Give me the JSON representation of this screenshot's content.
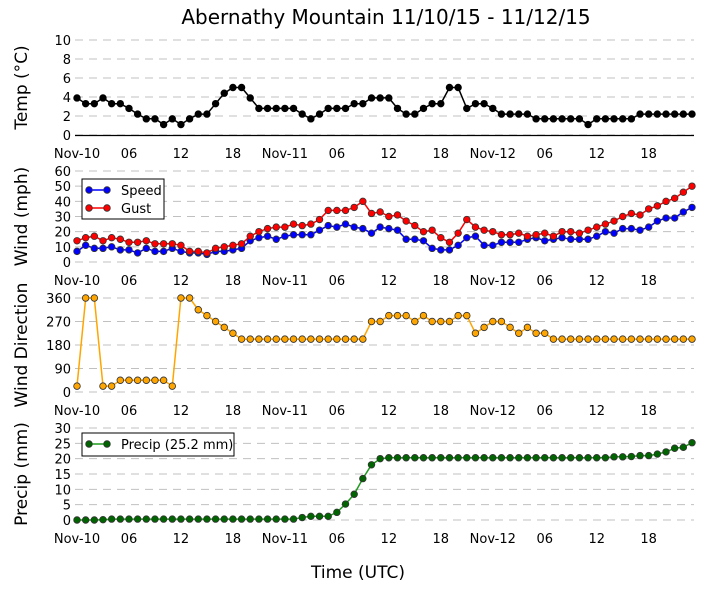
{
  "title": "Abernathy Mountain 11/10/15 - 11/12/15",
  "xlabel": "Time (UTC)",
  "x_tick_labels": [
    "Nov-10",
    "06",
    "12",
    "18",
    "Nov-11",
    "06",
    "12",
    "18",
    "Nov-12",
    "06",
    "12",
    "18"
  ],
  "x_tick_hours": [
    0,
    6,
    12,
    18,
    24,
    30,
    36,
    42,
    48,
    54,
    60,
    66
  ],
  "colors": {
    "temp": "#000000",
    "speed": "#0000ff",
    "gust": "#ff0000",
    "direction": "#ffa500",
    "precip_line": "#1f9a1f",
    "precip_marker": "#006400",
    "grid": "#c0c0c0"
  },
  "chart_data": [
    {
      "type": "line",
      "ylabel": "Temp (°C)",
      "ylim": [
        0,
        10
      ],
      "yticks": [
        "0",
        "2",
        "4",
        "6",
        "8",
        "10"
      ],
      "grid": true,
      "x_unit": "hours since Nov-10 00 UTC, hourly 0-71",
      "series": [
        {
          "name": "Temp",
          "color": "#000000",
          "values": [
            3.9,
            3.3,
            3.3,
            3.9,
            3.3,
            3.3,
            2.8,
            2.2,
            1.7,
            1.7,
            1.1,
            1.7,
            1.1,
            1.7,
            2.2,
            2.2,
            3.3,
            4.4,
            5.0,
            5.0,
            3.9,
            2.8,
            2.8,
            2.8,
            2.8,
            2.8,
            2.2,
            1.7,
            2.2,
            2.8,
            2.8,
            2.8,
            3.3,
            3.3,
            3.9,
            3.9,
            3.9,
            2.8,
            2.2,
            2.2,
            2.8,
            3.3,
            3.3,
            5.0,
            5.0,
            2.8,
            3.3,
            3.3,
            2.8,
            2.2,
            2.2,
            2.2,
            2.2,
            1.7,
            1.7,
            1.7,
            1.7,
            1.7,
            1.7,
            1.1,
            1.7,
            1.7,
            1.7,
            1.7,
            1.7,
            2.2,
            2.2,
            2.2,
            2.2,
            2.2,
            2.2,
            2.2
          ]
        }
      ]
    },
    {
      "type": "line",
      "ylabel": "Wind (mph)",
      "ylim": [
        0,
        60
      ],
      "yticks": [
        "0",
        "10",
        "20",
        "30",
        "40",
        "50",
        "60"
      ],
      "grid": true,
      "legend": "top-left",
      "series": [
        {
          "name": "Speed",
          "color": "#0000ff",
          "values": [
            7,
            11,
            9,
            9,
            10,
            8,
            8,
            6,
            9,
            7,
            7,
            9,
            7,
            6,
            6,
            5,
            7,
            7,
            8,
            9,
            14,
            16,
            17,
            15,
            17,
            18,
            18,
            18,
            21,
            24,
            23,
            25,
            23,
            22,
            19,
            23,
            22,
            21,
            15,
            15,
            14,
            9,
            8,
            8,
            11,
            16,
            17,
            11,
            11,
            13,
            13,
            13,
            15,
            16,
            14,
            15,
            16,
            15,
            15,
            15,
            17,
            20,
            19,
            22,
            22,
            21,
            23,
            27,
            29,
            29,
            33,
            36
          ]
        },
        {
          "name": "Gust",
          "color": "#ff0000",
          "values": [
            14,
            16,
            17,
            14,
            16,
            15,
            13,
            13,
            14,
            12,
            12,
            12,
            11,
            7,
            7,
            6,
            9,
            10,
            11,
            12,
            17,
            20,
            22,
            23,
            23,
            25,
            24,
            25,
            28,
            34,
            34,
            34,
            36,
            40,
            32,
            33,
            30,
            31,
            27,
            24,
            20,
            21,
            16,
            13,
            19,
            28,
            23,
            21,
            20,
            18,
            18,
            19,
            17,
            18,
            19,
            17,
            20,
            20,
            19,
            21,
            23,
            25,
            27,
            30,
            32,
            31,
            35,
            37,
            40,
            42,
            46,
            50
          ]
        }
      ]
    },
    {
      "type": "line",
      "ylabel": "Wind Direction",
      "ylim": [
        0,
        360
      ],
      "yticks": [
        "0",
        "90",
        "180",
        "270",
        "360"
      ],
      "grid": true,
      "series": [
        {
          "name": "Direction",
          "color": "#ffa500",
          "values": [
            22.5,
            360,
            360,
            22.5,
            22.5,
            45,
            45,
            45,
            45,
            45,
            45,
            22.5,
            360,
            360,
            315,
            292.5,
            270,
            247.5,
            225,
            202.5,
            202.5,
            202.5,
            202.5,
            202.5,
            202.5,
            202.5,
            202.5,
            202.5,
            202.5,
            202.5,
            202.5,
            202.5,
            202.5,
            202.5,
            270,
            270,
            292.5,
            292.5,
            292.5,
            270,
            292.5,
            270,
            270,
            270,
            292.5,
            292.5,
            225,
            247.5,
            270,
            270,
            247.5,
            225,
            247.5,
            225,
            225,
            202.5,
            202.5,
            202.5,
            202.5,
            202.5,
            202.5,
            202.5,
            202.5,
            202.5,
            202.5,
            202.5,
            202.5,
            202.5,
            202.5,
            202.5,
            202.5,
            202.5
          ]
        }
      ]
    },
    {
      "type": "line",
      "ylabel": "Precip (mm)",
      "ylim": [
        0,
        30
      ],
      "yticks": [
        "0",
        "5",
        "10",
        "15",
        "20",
        "25",
        "30"
      ],
      "grid": true,
      "legend": "top-left",
      "series": [
        {
          "name": "Precip (25.2 mm)",
          "color": "#006400",
          "values": [
            0,
            0,
            0,
            0.1,
            0.3,
            0.3,
            0.3,
            0.3,
            0.3,
            0.3,
            0.3,
            0.3,
            0.3,
            0.3,
            0.3,
            0.3,
            0.3,
            0.3,
            0.3,
            0.3,
            0.3,
            0.3,
            0.3,
            0.3,
            0.3,
            0.3,
            0.8,
            1.2,
            1.2,
            1.2,
            2.5,
            5.2,
            8.4,
            13.5,
            18.0,
            20.0,
            20.3,
            20.3,
            20.3,
            20.3,
            20.3,
            20.3,
            20.3,
            20.3,
            20.3,
            20.3,
            20.3,
            20.3,
            20.3,
            20.3,
            20.3,
            20.3,
            20.3,
            20.3,
            20.3,
            20.3,
            20.3,
            20.3,
            20.3,
            20.3,
            20.3,
            20.3,
            20.6,
            20.6,
            20.7,
            21.0,
            21.0,
            21.5,
            22.2,
            23.4,
            23.7,
            25.2
          ]
        }
      ]
    }
  ]
}
